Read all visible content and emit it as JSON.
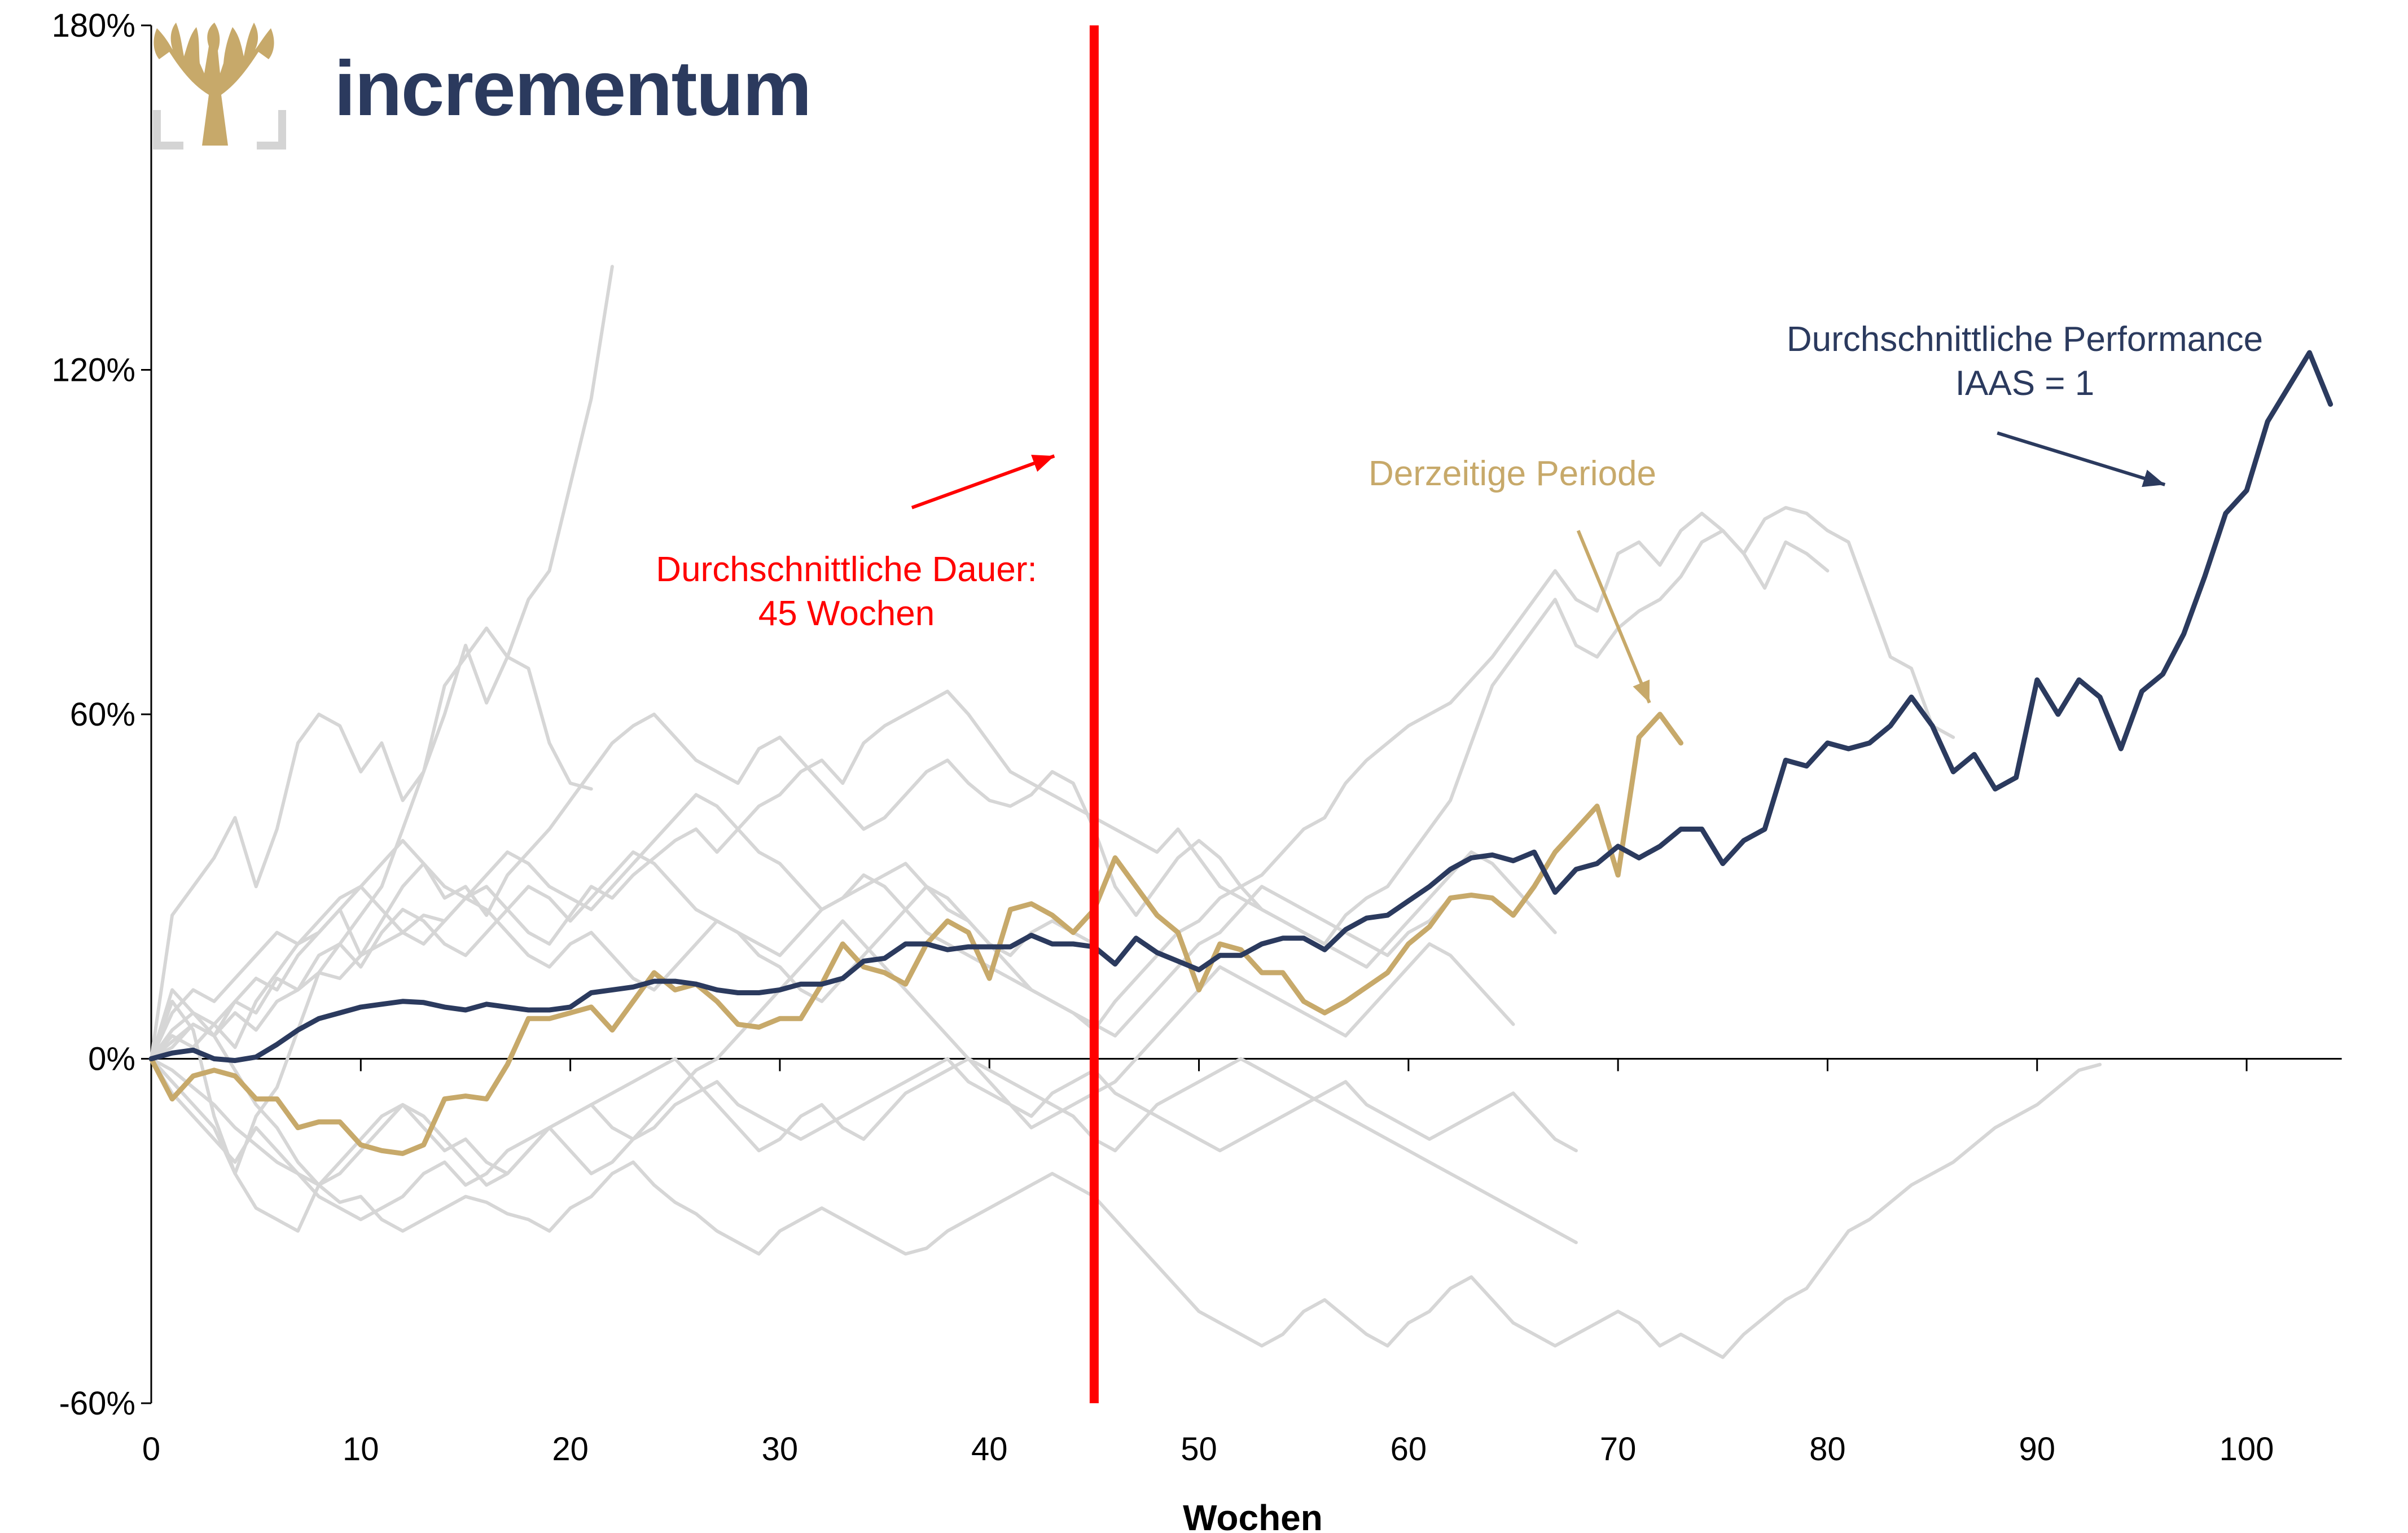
{
  "logo": {
    "text": "incrementum",
    "text_color": "#2b3a5e",
    "icon": "tree-icon",
    "icon_color": "#c7a96a",
    "frame_color": "#d4d4d4"
  },
  "chart_data": {
    "type": "line",
    "xlabel": "Wochen",
    "ylabel": "",
    "xlim": [
      0,
      104
    ],
    "ylim": [
      -60,
      180
    ],
    "x_ticks": [
      {
        "value": 0,
        "label": "0"
      },
      {
        "value": 10,
        "label": "10"
      },
      {
        "value": 20,
        "label": "20"
      },
      {
        "value": 30,
        "label": "30"
      },
      {
        "value": 40,
        "label": "40"
      },
      {
        "value": 50,
        "label": "50"
      },
      {
        "value": 60,
        "label": "60"
      },
      {
        "value": 70,
        "label": "70"
      },
      {
        "value": 80,
        "label": "80"
      },
      {
        "value": 90,
        "label": "90"
      },
      {
        "value": 100,
        "label": "100"
      }
    ],
    "y_ticks": [
      {
        "value": 180,
        "label": "180%"
      },
      {
        "value": 120,
        "label": "120%"
      },
      {
        "value": 60,
        "label": "60%"
      },
      {
        "value": 0,
        "label": "0%"
      },
      {
        "value": -60,
        "label": "-60%"
      }
    ],
    "grid": false,
    "vertical_marker": {
      "x": 45,
      "color": "#ff0000"
    },
    "colors": {
      "historical": "#d6d6d6",
      "average": "#2b3a5e",
      "current": "#c7a96a",
      "marker": "#ff0000"
    },
    "annotations": [
      {
        "id": "duration",
        "lines": [
          "Durchschnittliche Dauer:",
          "45 Wochen"
        ],
        "color": "#ff0000",
        "arrow_from": [
          36.3,
          96
        ],
        "arrow_to": [
          43.1,
          105
        ]
      },
      {
        "id": "current",
        "lines": [
          "Derzeitige Periode"
        ],
        "color": "#c7a96a",
        "arrow_from": [
          68.1,
          92
        ],
        "arrow_to": [
          71.5,
          62
        ]
      },
      {
        "id": "average",
        "lines": [
          "Durchschnittliche Performance",
          "IAAS = 1"
        ],
        "color": "#2b3a5e",
        "arrow_from": [
          88.1,
          109
        ],
        "arrow_to": [
          96.1,
          100
        ]
      }
    ],
    "series": [
      {
        "role": "average",
        "x_start": 0,
        "values": [
          0,
          1,
          1.5,
          0,
          -0.3,
          0.3,
          2.5,
          5,
          7,
          8,
          9,
          9.5,
          10,
          9.8,
          9,
          8.5,
          9.5,
          9,
          8.5,
          8.5,
          9,
          11.5,
          12,
          12.5,
          13.5,
          13.5,
          13,
          12,
          11.5,
          11.5,
          12,
          13,
          13,
          14,
          17,
          17.5,
          20,
          20,
          19,
          19.5,
          19.5,
          19.5,
          21.5,
          20,
          20,
          19.5,
          16.5,
          21,
          18.5,
          17,
          15.5,
          18,
          18,
          20,
          21,
          21,
          19,
          22.5,
          24.5,
          25,
          27.5,
          30,
          33,
          35,
          35.5,
          34.5,
          36,
          29,
          33,
          34,
          37,
          35,
          37,
          40,
          40,
          34,
          38,
          40,
          52,
          51,
          55,
          54,
          55,
          58,
          63,
          58,
          50,
          53,
          47,
          49,
          66,
          60,
          66,
          63,
          54,
          64,
          67,
          74,
          84,
          95,
          99,
          111,
          117,
          123,
          114
        ]
      },
      {
        "role": "current",
        "x_start": 0,
        "values": [
          0,
          -7,
          -3,
          -2,
          -3,
          -7,
          -7,
          -12,
          -11,
          -11,
          -15,
          -16,
          -16.5,
          -15,
          -7,
          -6.5,
          -7,
          -1,
          7,
          7,
          8,
          9,
          5,
          10,
          15,
          12,
          13,
          10,
          6,
          5.5,
          7,
          7,
          13,
          20,
          16,
          15,
          13,
          20,
          24,
          22,
          14,
          26,
          27,
          25,
          22,
          26,
          35,
          30,
          25,
          22,
          12,
          20,
          19,
          15,
          15,
          10,
          8,
          10,
          12.5,
          15,
          20,
          23,
          28,
          28.5,
          28,
          25,
          30,
          36,
          40,
          44,
          32,
          56,
          60,
          55
        ]
      },
      {
        "role": "historical",
        "x_start": 0,
        "values": [
          0,
          25,
          30,
          35,
          42,
          30,
          40,
          55,
          60,
          58,
          50,
          55,
          45,
          50,
          65,
          70,
          75,
          70,
          80,
          85,
          100,
          115,
          138
        ]
      },
      {
        "role": "historical",
        "x_start": 0,
        "values": [
          0,
          10,
          5,
          -10,
          -20,
          -10,
          -5,
          5,
          15,
          20,
          25,
          30,
          40,
          50,
          60,
          72,
          62,
          70,
          68,
          55,
          48,
          47
        ]
      },
      {
        "role": "historical",
        "x_start": 0,
        "values": [
          0,
          5,
          8,
          6,
          2,
          10,
          15,
          20,
          22,
          26,
          18,
          24,
          30,
          34,
          28,
          30,
          25,
          32,
          36,
          40,
          45,
          50,
          55,
          58,
          60,
          56,
          52,
          50,
          48,
          54,
          56,
          52,
          48,
          44,
          40,
          42,
          46,
          50,
          52,
          48,
          45,
          44,
          46,
          50,
          48,
          40,
          30,
          25,
          30,
          35,
          38,
          35,
          30,
          32,
          36,
          40,
          42,
          48,
          52,
          55,
          58,
          60,
          62,
          66,
          70,
          75,
          80,
          85,
          80,
          78,
          88,
          90,
          86,
          92,
          95,
          92,
          88,
          82,
          90,
          88,
          85
        ]
      },
      {
        "role": "historical",
        "x_start": 0,
        "values": [
          0,
          3,
          6,
          4,
          8,
          5,
          10,
          12,
          15,
          14,
          18,
          20,
          22,
          25,
          24,
          28,
          30,
          26,
          22,
          20,
          25,
          30,
          28,
          32,
          35,
          38,
          40,
          36,
          40,
          44,
          46,
          50,
          52,
          48,
          55,
          58,
          60,
          62,
          64,
          60,
          55,
          50,
          48,
          46,
          44,
          42,
          40,
          38,
          36,
          40,
          35,
          30,
          28,
          26,
          24,
          22,
          20,
          25,
          28,
          30,
          35,
          40,
          45,
          55,
          65,
          70,
          75,
          80,
          72,
          70,
          75,
          78,
          80,
          84,
          90,
          92,
          88,
          94,
          96,
          95,
          92,
          90,
          80,
          70,
          68,
          58,
          56
        ]
      },
      {
        "role": "historical",
        "x_start": 0,
        "values": [
          0,
          -2,
          -5,
          -8,
          -12,
          -15,
          -18,
          -20,
          -22,
          -25,
          -24,
          -28,
          -30,
          -28,
          -26,
          -24,
          -25,
          -27,
          -28,
          -30,
          -26,
          -24,
          -20,
          -18,
          -22,
          -25,
          -27,
          -30,
          -32,
          -34,
          -30,
          -28,
          -26,
          -28,
          -30,
          -32,
          -34,
          -33,
          -30,
          -28,
          -26,
          -24,
          -22,
          -20,
          -22,
          -24,
          -28,
          -32,
          -36,
          -40,
          -44,
          -46,
          -48,
          -50,
          -48,
          -44,
          -42,
          -45,
          -48,
          -50,
          -46,
          -44,
          -40,
          -38,
          -42,
          -46,
          -48,
          -50,
          -48,
          -46,
          -44,
          -46,
          -50,
          -48,
          -50,
          -52,
          -48,
          -45,
          -42,
          -40,
          -35,
          -30,
          -28,
          -25,
          -22,
          -20,
          -18,
          -15,
          -12,
          -10,
          -8,
          -5,
          -2,
          -1
        ]
      },
      {
        "role": "historical",
        "x_start": 0,
        "values": [
          0,
          4,
          2,
          6,
          10,
          8,
          14,
          12,
          18,
          20,
          16,
          22,
          26,
          24,
          20,
          18,
          22,
          26,
          30,
          28,
          24,
          28,
          32,
          36,
          34,
          30,
          26,
          24,
          22,
          20,
          18,
          22,
          26,
          28,
          30,
          32,
          34,
          30,
          26,
          24,
          20,
          18,
          22,
          24,
          22,
          20
        ]
      },
      {
        "role": "historical",
        "x_start": 0,
        "values": [
          0,
          -4,
          -8,
          -12,
          -20,
          -26,
          -28,
          -30,
          -22,
          -18,
          -14,
          -10,
          -8,
          -12,
          -16,
          -14,
          -18,
          -20,
          -16,
          -12,
          -10,
          -8,
          -6,
          -4,
          -2,
          0,
          -4,
          -8,
          -12,
          -16,
          -14,
          -10,
          -8,
          -12,
          -14,
          -10,
          -6,
          -4,
          -2,
          0,
          -2,
          -4,
          -6,
          -8,
          -10,
          -14,
          -16,
          -12,
          -8,
          -6,
          -4,
          -2,
          0,
          -2,
          -4,
          -6,
          -8,
          -10,
          -12,
          -14,
          -16,
          -18,
          -20,
          -22,
          -24,
          -26,
          -28,
          -30,
          -32
        ]
      },
      {
        "role": "historical",
        "x_start": 0,
        "values": [
          0,
          2,
          6,
          4,
          10,
          14,
          12,
          18,
          22,
          26,
          30,
          34,
          38,
          34,
          30,
          28,
          32,
          36,
          34,
          30,
          28,
          26,
          30,
          34,
          38,
          42,
          46,
          44,
          40,
          36,
          34,
          30,
          26,
          28,
          32,
          30,
          26,
          22,
          20,
          18,
          16,
          14,
          12,
          10,
          8,
          6,
          4,
          8,
          12,
          16,
          20,
          22,
          26,
          30,
          28,
          26,
          24,
          22,
          20,
          18,
          22,
          24,
          28
        ]
      },
      {
        "role": "historical",
        "x_start": 0,
        "values": [
          0,
          -6,
          -10,
          -14,
          -18,
          -12,
          -16,
          -20,
          -24,
          -26,
          -28,
          -26,
          -24,
          -20,
          -18,
          -22,
          -20,
          -16,
          -14,
          -12,
          -16,
          -20,
          -18,
          -14,
          -12,
          -8,
          -6,
          -4,
          -8,
          -10,
          -12,
          -14,
          -12,
          -10,
          -8,
          -6,
          -4,
          -2,
          0,
          -4,
          -6,
          -8,
          -10,
          -6,
          -4,
          -2,
          -6,
          -8,
          -10,
          -12,
          -14,
          -16,
          -14,
          -12,
          -10,
          -8,
          -6,
          -4,
          -8,
          -10,
          -12,
          -14,
          -12,
          -10,
          -8,
          -6,
          -10,
          -14,
          -16
        ]
      },
      {
        "role": "historical",
        "x_start": 0,
        "values": [
          0,
          8,
          12,
          10,
          14,
          18,
          22,
          20,
          24,
          28,
          30,
          26,
          22,
          20,
          24,
          28,
          26,
          22,
          18,
          16,
          20,
          22,
          18,
          14,
          12,
          16,
          20,
          24,
          22,
          18,
          16,
          12,
          10,
          14,
          18,
          22,
          26,
          30,
          28,
          24,
          20,
          16,
          12,
          10,
          8,
          5,
          10,
          14,
          18,
          22,
          24,
          28,
          30,
          26,
          24,
          22,
          20,
          18,
          16,
          20,
          24,
          28,
          32,
          36,
          34,
          30,
          26,
          22
        ]
      },
      {
        "role": "historical",
        "x_start": 0,
        "values": [
          0,
          12,
          8,
          4,
          -2,
          -8,
          -12,
          -18,
          -22,
          -20,
          -16,
          -12,
          -8,
          -10,
          -14,
          -18,
          -22,
          -20,
          -16,
          -12,
          -10,
          -8,
          -12,
          -14,
          -10,
          -6,
          -2,
          0,
          4,
          8,
          12,
          16,
          20,
          24,
          20,
          16,
          12,
          8,
          4,
          0,
          -4,
          -8,
          -12,
          -10,
          -8,
          -6,
          -4,
          0,
          4,
          8,
          12,
          16,
          14,
          12,
          10,
          8,
          6,
          4,
          8,
          12,
          16,
          20,
          18,
          14,
          10,
          6
        ]
      }
    ]
  }
}
